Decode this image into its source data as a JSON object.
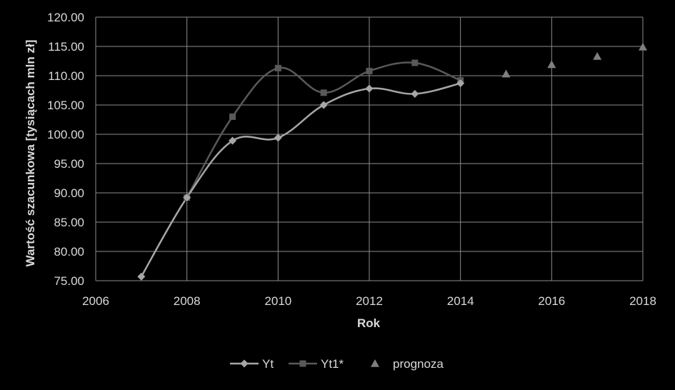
{
  "chart_data": {
    "type": "scatter",
    "title": "",
    "xlabel": "Rok",
    "ylabel": "Wartość szacunkowa [tysiącach mln zł]",
    "xlim": [
      2006,
      2018
    ],
    "ylim": [
      75,
      120
    ],
    "x_ticks": [
      "2006",
      "2008",
      "2010",
      "2012",
      "2014",
      "2016",
      "2018"
    ],
    "y_ticks": [
      "75.00",
      "80.00",
      "85.00",
      "90.00",
      "95.00",
      "100.00",
      "105.00",
      "110.00",
      "115.00",
      "120.00"
    ],
    "grid": true,
    "legend_position": "bottom",
    "series": [
      {
        "name": "Yt",
        "style": "smooth-line",
        "marker": "diamond",
        "color": "#a6a6a6",
        "x": [
          2007,
          2008,
          2009,
          2010,
          2011,
          2012,
          2013,
          2014
        ],
        "y": [
          75.7,
          89.2,
          98.9,
          99.4,
          105.0,
          107.8,
          106.9,
          108.7
        ]
      },
      {
        "name": "Yt1*",
        "style": "smooth-line",
        "marker": "square",
        "color": "#595959",
        "x": [
          2008,
          2009,
          2010,
          2011,
          2012,
          2013,
          2014
        ],
        "y": [
          89.2,
          103.0,
          111.3,
          107.1,
          110.8,
          112.2,
          109.2
        ]
      },
      {
        "name": "prognoza",
        "style": "markers",
        "marker": "triangle",
        "color": "#7f7f7f",
        "x": [
          2015,
          2016,
          2017,
          2018
        ],
        "y": [
          110.3,
          111.9,
          113.3,
          114.9
        ]
      }
    ]
  }
}
